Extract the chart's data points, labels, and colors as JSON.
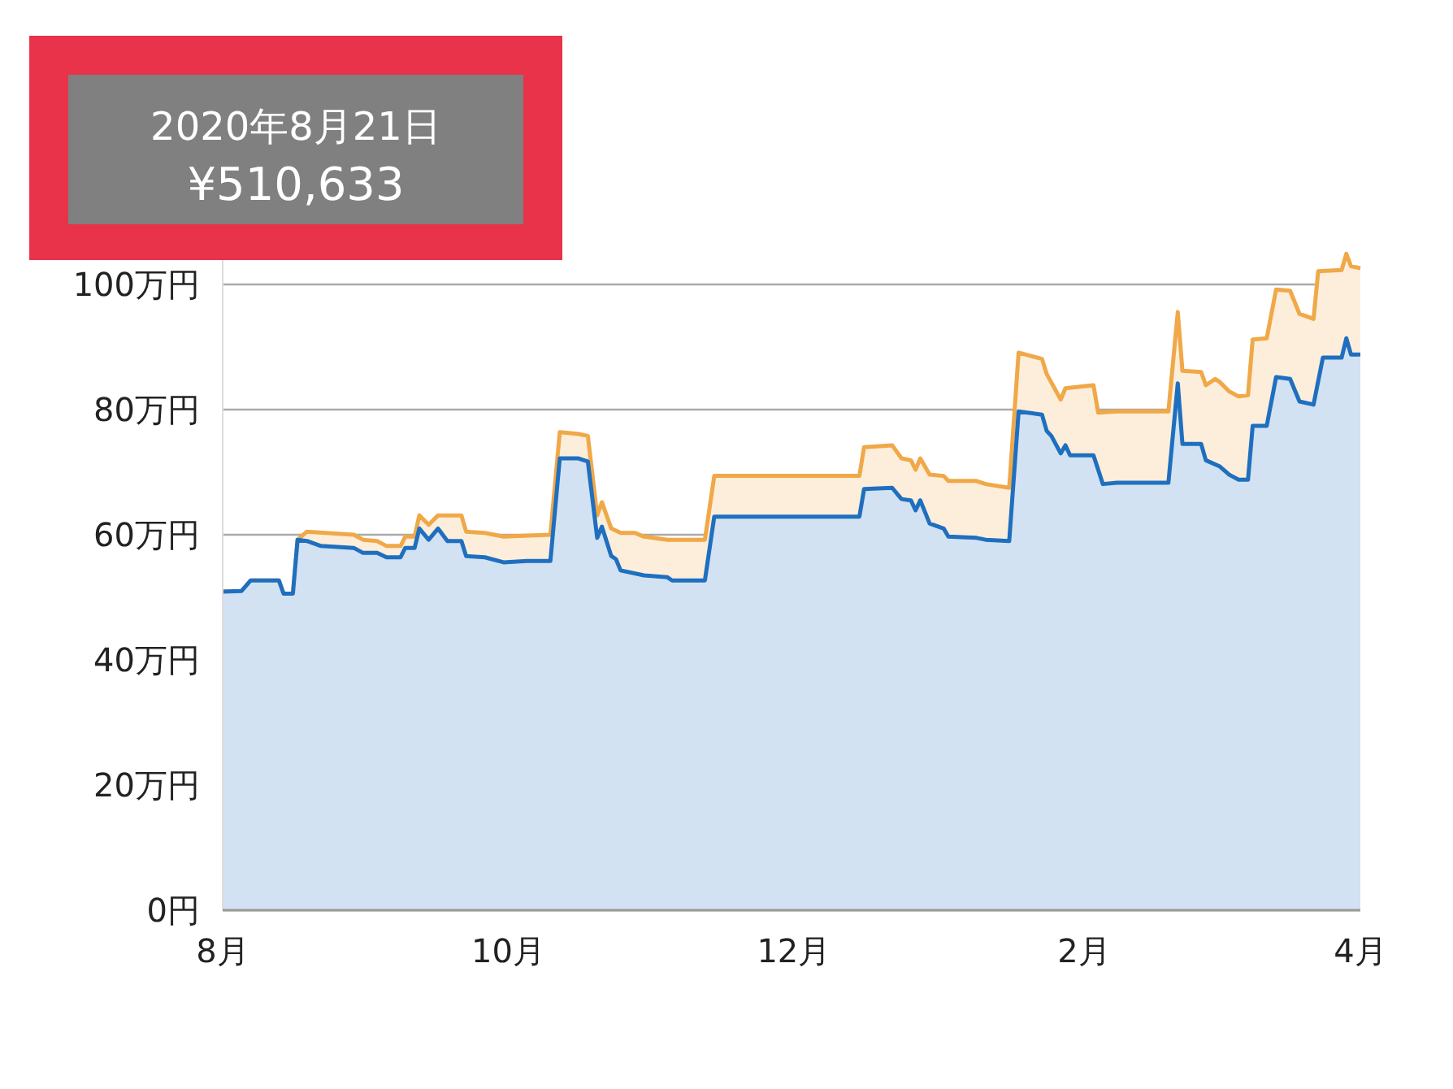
{
  "chart_data": {
    "type": "area",
    "annotations": [
      "2020年8月21日",
      "¥510,633"
    ],
    "xlim": [
      "2020-08-01",
      "2021-04-01"
    ],
    "xticks": [
      {
        "value": "2020-08-01",
        "label": "8月"
      },
      {
        "value": "2020-10-01",
        "label": "10月"
      },
      {
        "value": "2020-12-01",
        "label": "12月"
      },
      {
        "value": "2021-02-01",
        "label": "2月"
      },
      {
        "value": "2021-04-01",
        "label": "4月"
      }
    ],
    "ylim": [
      0,
      106
    ],
    "yticks": [
      {
        "value": 0,
        "label": "0円"
      },
      {
        "value": 20,
        "label": "20万円"
      },
      {
        "value": 40,
        "label": "40万円"
      },
      {
        "value": 60,
        "label": "60万円"
      },
      {
        "value": 80,
        "label": "80万円"
      },
      {
        "value": 100,
        "label": "100万円"
      }
    ],
    "grid": "y",
    "series": [
      {
        "color": "#f0a848",
        "x": [
          "2020-08-01",
          "2020-08-05",
          "2020-08-07",
          "2020-08-13",
          "2020-08-14",
          "2020-08-16",
          "2020-08-17",
          "2020-08-19",
          "2020-08-29",
          "2020-08-31",
          "2020-09-03",
          "2020-09-05",
          "2020-09-08",
          "2020-09-09",
          "2020-09-11",
          "2020-09-12",
          "2020-09-14",
          "2020-09-16",
          "2020-09-21",
          "2020-09-22",
          "2020-09-26",
          "2020-09-30",
          "2020-10-10",
          "2020-10-12",
          "2020-10-16",
          "2020-10-18",
          "2020-10-20",
          "2020-10-21",
          "2020-10-23",
          "2020-10-25",
          "2020-10-28",
          "2020-10-30",
          "2020-11-04",
          "2020-11-12",
          "2020-11-14",
          "2020-12-15",
          "2020-12-16",
          "2020-12-22",
          "2020-12-24",
          "2020-12-26",
          "2020-12-27",
          "2020-12-28",
          "2020-12-30",
          "2021-01-02",
          "2021-01-03",
          "2021-01-09",
          "2021-01-11",
          "2021-01-16",
          "2021-01-18",
          "2021-01-23",
          "2021-01-24",
          "2021-01-27",
          "2021-01-28",
          "2021-02-03",
          "2021-02-04",
          "2021-02-08",
          "2021-02-19",
          "2021-02-21",
          "2021-02-22",
          "2021-02-26",
          "2021-02-27",
          "2021-03-01",
          "2021-03-02",
          "2021-03-04",
          "2021-03-06",
          "2021-03-08",
          "2021-03-09",
          "2021-03-12",
          "2021-03-14",
          "2021-03-17",
          "2021-03-19",
          "2021-03-22",
          "2021-03-23",
          "2021-03-28",
          "2021-03-29",
          "2021-03-30",
          "2021-04-01"
        ],
        "values": [
          50.9,
          51,
          52.7,
          52.7,
          50.6,
          50.6,
          59.2,
          60.5,
          60,
          59.2,
          59,
          58.2,
          58.2,
          59.7,
          59.7,
          63.1,
          61.6,
          63.1,
          63.1,
          60.5,
          60.3,
          59.7,
          60,
          76.4,
          76.1,
          75.8,
          63.1,
          65.2,
          61,
          60.3,
          60.3,
          59.7,
          59.2,
          59.2,
          69.4,
          69.4,
          74,
          74.3,
          72.2,
          71.9,
          70.4,
          72.2,
          69.6,
          69.4,
          68.6,
          68.6,
          68.1,
          67.5,
          89.1,
          88.1,
          85.7,
          81.6,
          83.4,
          83.9,
          79.5,
          79.7,
          79.7,
          95.6,
          86.2,
          86,
          83.9,
          84.9,
          84.4,
          82.9,
          82.1,
          82.3,
          91.2,
          91.4,
          99.2,
          99,
          95.3,
          94.5,
          102.1,
          102.3,
          104.9,
          102.9,
          102.6
        ]
      },
      {
        "color": "#1f6fbf",
        "x": [
          "2020-08-01",
          "2020-08-05",
          "2020-08-07",
          "2020-08-13",
          "2020-08-14",
          "2020-08-16",
          "2020-08-17",
          "2020-08-19",
          "2020-08-22",
          "2020-08-29",
          "2020-08-31",
          "2020-09-03",
          "2020-09-05",
          "2020-09-08",
          "2020-09-09",
          "2020-09-11",
          "2020-09-12",
          "2020-09-14",
          "2020-09-16",
          "2020-09-18",
          "2020-09-21",
          "2020-09-22",
          "2020-09-26",
          "2020-09-30",
          "2020-10-05",
          "2020-10-10",
          "2020-10-12",
          "2020-10-16",
          "2020-10-18",
          "2020-10-20",
          "2020-10-21",
          "2020-10-23",
          "2020-10-24",
          "2020-10-25",
          "2020-10-30",
          "2020-11-04",
          "2020-11-05",
          "2020-11-12",
          "2020-11-14",
          "2020-12-01",
          "2020-12-15",
          "2020-12-16",
          "2020-12-22",
          "2020-12-24",
          "2020-12-26",
          "2020-12-27",
          "2020-12-28",
          "2020-12-30",
          "2021-01-02",
          "2021-01-03",
          "2021-01-09",
          "2021-01-11",
          "2021-01-16",
          "2021-01-18",
          "2021-01-23",
          "2021-01-24",
          "2021-01-25",
          "2021-01-27",
          "2021-01-28",
          "2021-01-29",
          "2021-02-03",
          "2021-02-05",
          "2021-02-08",
          "2021-02-19",
          "2021-02-21",
          "2021-02-22",
          "2021-02-26",
          "2021-02-27",
          "2021-03-02",
          "2021-03-04",
          "2021-03-06",
          "2021-03-08",
          "2021-03-09",
          "2021-03-12",
          "2021-03-14",
          "2021-03-17",
          "2021-03-19",
          "2021-03-22",
          "2021-03-24",
          "2021-03-28",
          "2021-03-29",
          "2021-03-30",
          "2021-04-01"
        ],
        "values": [
          50.9,
          51,
          52.7,
          52.7,
          50.6,
          50.6,
          59.2,
          59,
          58.2,
          57.9,
          57.1,
          57.1,
          56.4,
          56.4,
          57.9,
          57.9,
          61,
          59.2,
          61,
          59,
          59,
          56.6,
          56.4,
          55.6,
          55.8,
          55.8,
          72.2,
          72.2,
          71.7,
          59.5,
          61.3,
          56.6,
          56.1,
          54.3,
          53.5,
          53.2,
          52.7,
          52.7,
          62.9,
          62.9,
          62.9,
          67.3,
          67.5,
          65.7,
          65.5,
          63.9,
          65.5,
          61.8,
          61,
          59.7,
          59.5,
          59.2,
          59,
          79.7,
          79.2,
          76.6,
          75.8,
          73,
          74.3,
          72.7,
          72.7,
          68.1,
          68.3,
          68.3,
          84.2,
          74.5,
          74.5,
          71.9,
          70.9,
          69.6,
          68.8,
          68.8,
          77.4,
          77.4,
          85.2,
          84.9,
          81.3,
          80.8,
          88.3,
          88.3,
          91.4,
          88.8,
          88.8
        ]
      }
    ]
  }
}
